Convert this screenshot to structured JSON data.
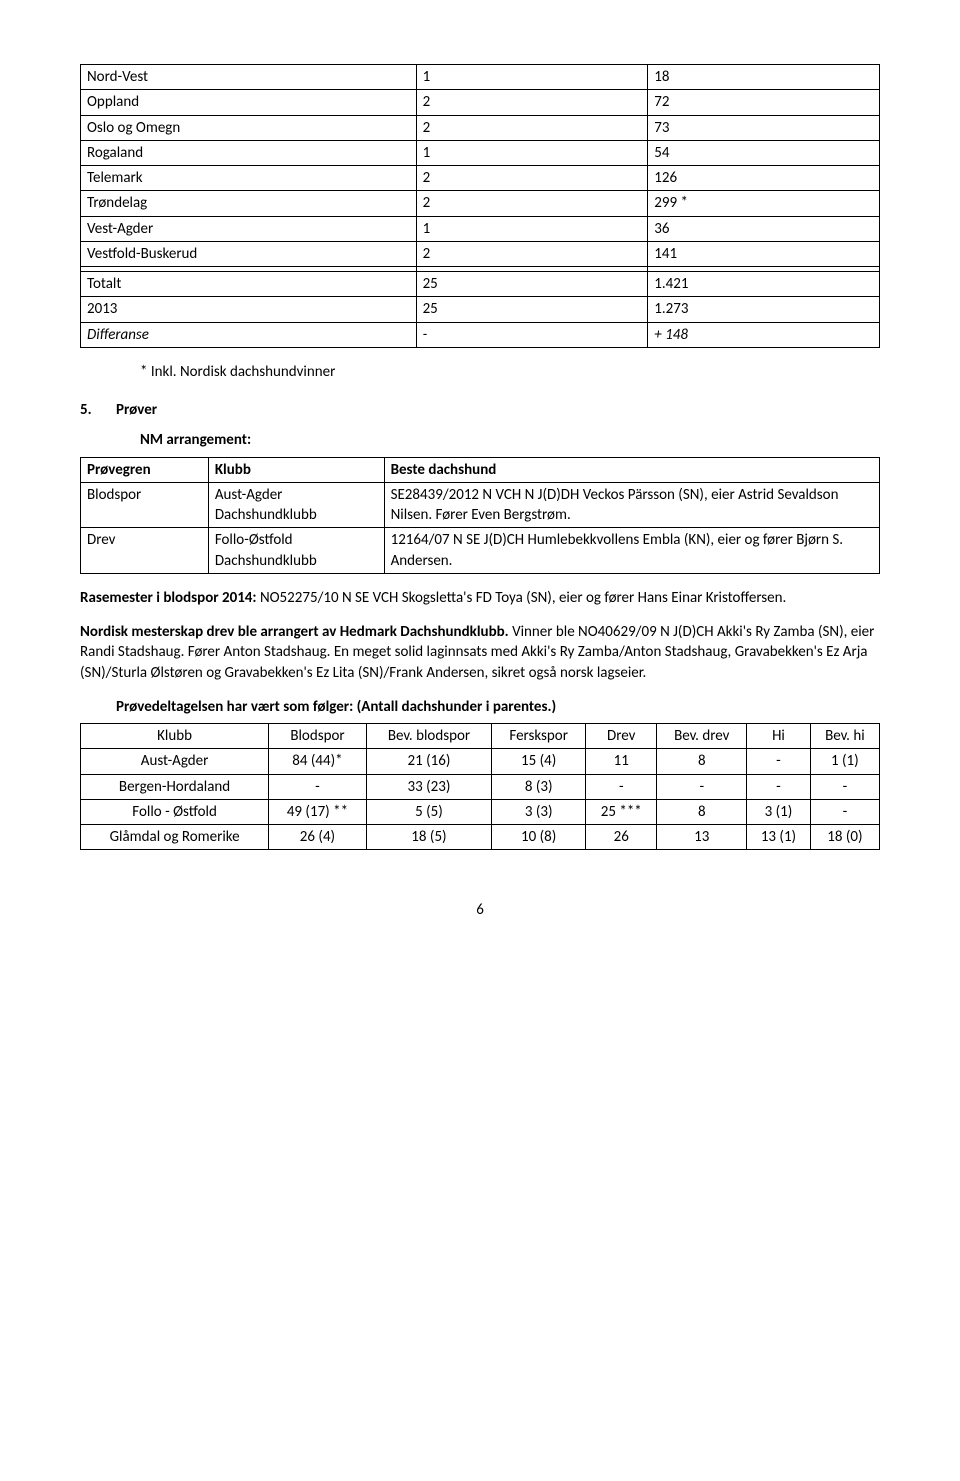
{
  "table1": {
    "rows": [
      [
        "Nord-Vest",
        "1",
        "18"
      ],
      [
        "Oppland",
        "2",
        "72"
      ],
      [
        "Oslo og Omegn",
        "2",
        "73"
      ],
      [
        "Rogaland",
        "1",
        "54"
      ],
      [
        "Telemark",
        "2",
        "126"
      ],
      [
        "Trøndelag",
        "2",
        "299 *"
      ],
      [
        "Vest-Agder",
        "1",
        "36"
      ],
      [
        "Vestfold-Buskerud",
        "2",
        "141"
      ],
      [
        "",
        "",
        ""
      ],
      [
        "Totalt",
        "25",
        "1.421"
      ],
      [
        "2013",
        "25",
        "1.273"
      ]
    ],
    "last": {
      "c1": "Differanse",
      "c2": "-",
      "c3": "+ 148"
    }
  },
  "note_inkl": "* Inkl. Nordisk dachshundvinner",
  "section5": {
    "num": "5.",
    "title": "Prøver"
  },
  "nm_title": "NM arrangement:",
  "table2": {
    "head": [
      "Prøvegren",
      "Klubb",
      "Beste dachshund"
    ],
    "rows": [
      [
        "Blodspor",
        "Aust-Agder Dachshundklubb",
        "SE28439/2012 N VCH N J(D)DH Veckos Pärsson (SN), eier Astrid Sevaldson Nilsen. Fører Even Bergstrøm."
      ],
      [
        "Drev",
        "Follo-Østfold Dachshundklubb",
        "12164/07 N SE J(D)CH Humlebekkvollens Embla (KN), eier og fører Bjørn S. Andersen."
      ]
    ]
  },
  "rasemester": {
    "label": "Rasemester i blodspor 2014: ",
    "text": "NO52275/10 N SE VCH Skogsletta's FD Toya (SN), eier og fører Hans Einar Kristoffersen."
  },
  "nordisk": {
    "bold": "Nordisk mesterskap drev ble arrangert av Hedmark Dachshundklubb.",
    "rest": " Vinner ble NO40629/09 N J(D)CH Akki's Ry Zamba (SN), eier Randi Stadshaug. Fører Anton Stadshaug. En meget solid laginnsats med Akki's Ry Zamba/Anton Stadshaug, Gravabekken's Ez Arja (SN)/Sturla Ølstøren og Gravabekken's Ez Lita (SN)/Frank Andersen, sikret også norsk lagseier."
  },
  "deltag_title": "Prøvedeltagelsen har vært som følger: (Antall dachshunder i parentes.)",
  "table3": {
    "head": [
      "Klubb",
      "Blodspor",
      "Bev. blodspor",
      "Ferskspor",
      "Drev",
      "Bev. drev",
      "Hi",
      "Bev. hi"
    ],
    "rows": [
      [
        "Aust-Agder",
        "84 (44)*",
        "21 (16)",
        "15 (4)",
        "11",
        "8",
        "-",
        "1 (1)"
      ],
      [
        "Bergen-Hordaland",
        "-",
        "33 (23)",
        "8 (3)",
        "-",
        "-",
        "-",
        "-"
      ],
      [
        "Follo - Østfold",
        "49 (17) **",
        "5 (5)",
        "3 (3)",
        "25 ***",
        "8",
        "3 (1)",
        "-"
      ],
      [
        "Glåmdal og Romerike",
        "26 (4)",
        "18 (5)",
        "10 (8)",
        "26",
        "13",
        "13 (1)",
        "18 (0)"
      ]
    ]
  },
  "page_number": "6"
}
